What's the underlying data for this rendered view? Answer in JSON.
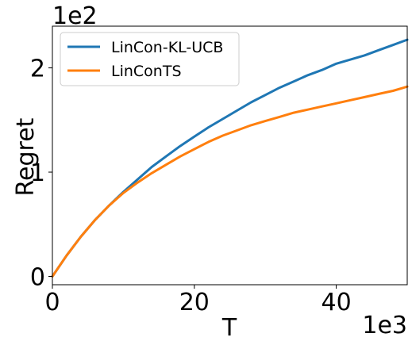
{
  "chart_data": {
    "type": "line",
    "xlabel": "T",
    "ylabel": "Regret",
    "x_offset_label": "1e3",
    "y_offset_label": "1e2",
    "xlim": [
      0,
      50
    ],
    "ylim": [
      -0.08,
      2.4
    ],
    "x_ticks": [
      0,
      20,
      40
    ],
    "x_tick_labels": [
      "0",
      "20",
      "40"
    ],
    "y_ticks": [
      0,
      1,
      2
    ],
    "y_tick_labels": [
      "0",
      "1",
      "2"
    ],
    "grid": false,
    "legend_position": "top-left",
    "series": [
      {
        "name": "LinCon-KL-UCB",
        "color": "#1f77b4",
        "x": [
          0,
          2,
          4,
          6,
          8,
          10,
          12,
          14,
          16,
          18,
          20,
          22,
          24,
          26,
          28,
          30,
          32,
          34,
          36,
          38,
          40,
          42,
          44,
          46,
          48,
          50
        ],
        "values": [
          0,
          0.2,
          0.38,
          0.54,
          0.68,
          0.81,
          0.93,
          1.05,
          1.15,
          1.25,
          1.34,
          1.43,
          1.51,
          1.59,
          1.67,
          1.74,
          1.81,
          1.87,
          1.93,
          1.98,
          2.04,
          2.08,
          2.12,
          2.17,
          2.22,
          2.27
        ]
      },
      {
        "name": "LinConTS",
        "color": "#ff7f0e",
        "x": [
          0,
          2,
          4,
          6,
          8,
          10,
          12,
          14,
          16,
          18,
          20,
          22,
          24,
          26,
          28,
          30,
          32,
          34,
          36,
          38,
          40,
          42,
          44,
          46,
          48,
          50
        ],
        "values": [
          0,
          0.2,
          0.38,
          0.54,
          0.68,
          0.8,
          0.9,
          0.99,
          1.07,
          1.15,
          1.22,
          1.29,
          1.35,
          1.4,
          1.45,
          1.49,
          1.53,
          1.57,
          1.6,
          1.63,
          1.66,
          1.69,
          1.72,
          1.75,
          1.78,
          1.82
        ]
      }
    ]
  }
}
